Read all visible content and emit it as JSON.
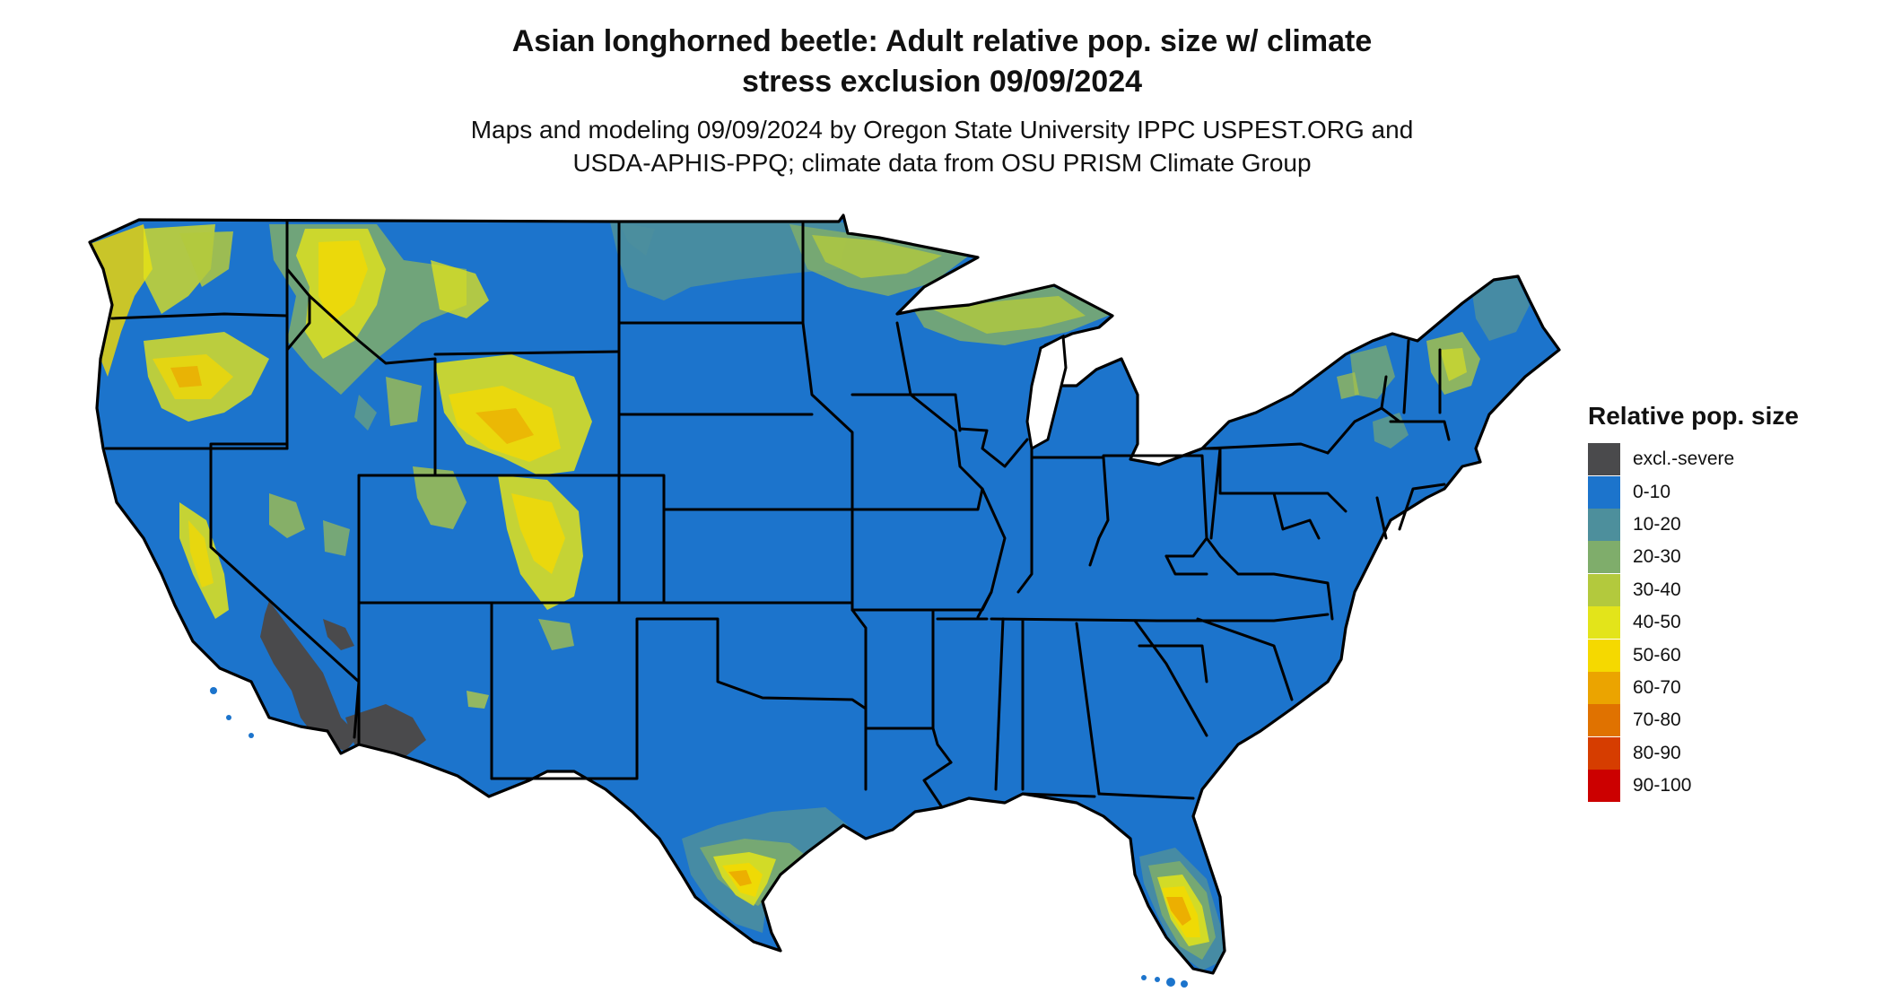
{
  "title": {
    "line1": "Asian longhorned beetle: Adult relative pop. size w/ climate",
    "line2": "stress exclusion 09/09/2024"
  },
  "subtitle": {
    "line1": "Maps and modeling 09/09/2024 by Oregon State University IPPC USPEST.ORG and",
    "line2": "USDA-APHIS-PPQ; climate data from OSU PRISM Climate Group"
  },
  "colors": {
    "base": "#1c74cc",
    "excluded": "#4a4a4c",
    "border": "#000000"
  },
  "legend": {
    "title": "Relative pop. size",
    "items": [
      {
        "label": "excl.-severe",
        "color": "#4a4a4c"
      },
      {
        "label": "0-10",
        "color": "#1c74cc"
      },
      {
        "label": "10-20",
        "color": "#4d8f9c"
      },
      {
        "label": "20-30",
        "color": "#7fad6b"
      },
      {
        "label": "30-40",
        "color": "#b3c93d"
      },
      {
        "label": "40-50",
        "color": "#e3e41a"
      },
      {
        "label": "50-60",
        "color": "#f5d900"
      },
      {
        "label": "60-70",
        "color": "#eba400"
      },
      {
        "label": "70-80",
        "color": "#e07200"
      },
      {
        "label": "80-90",
        "color": "#d63d00"
      },
      {
        "label": "90-100",
        "color": "#cc0000"
      }
    ]
  }
}
